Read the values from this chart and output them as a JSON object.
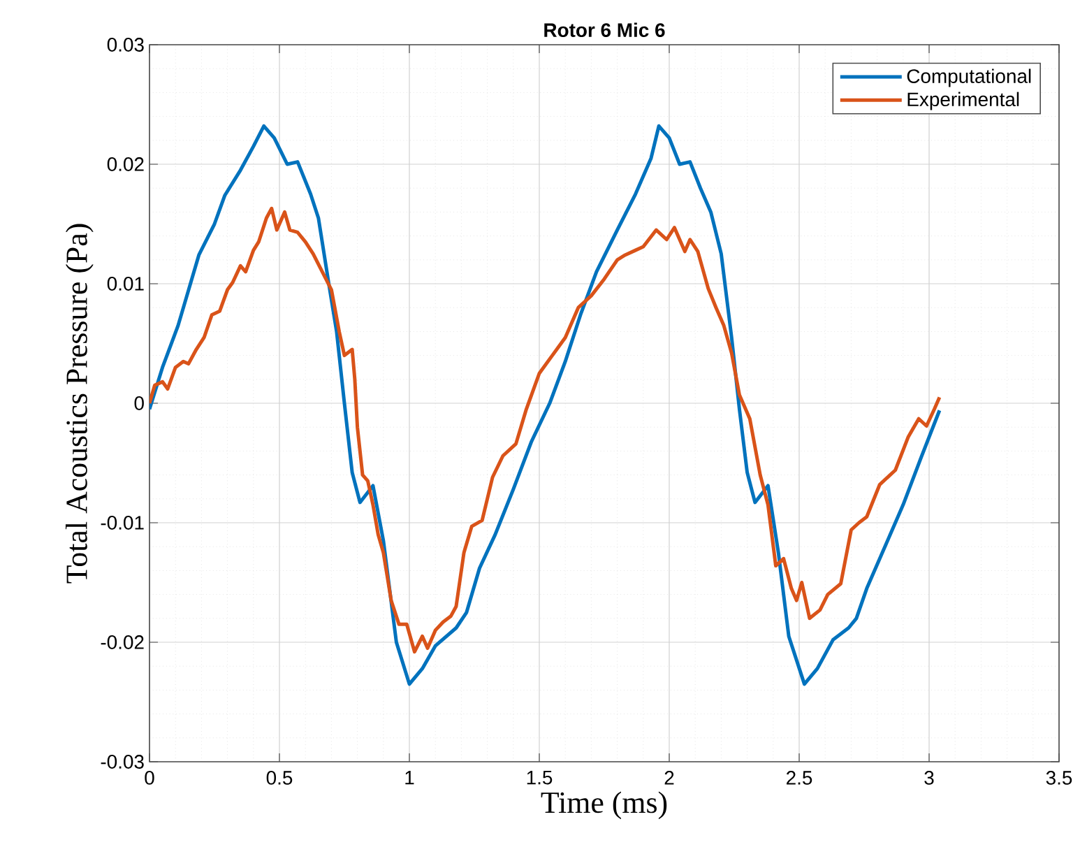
{
  "chart_data": {
    "type": "line",
    "title": "Rotor 6 Mic 6",
    "xlabel": "Time (ms)",
    "ylabel": "Total Acoustics Pressure (Pa)",
    "xlim": [
      0,
      3.5
    ],
    "ylim": [
      -0.03,
      0.03
    ],
    "xticks": [
      0,
      0.5,
      1,
      1.5,
      2,
      2.5,
      3,
      3.5
    ],
    "yticks": [
      -0.03,
      -0.02,
      -0.01,
      0,
      0.01,
      0.02,
      0.03
    ],
    "grid": true,
    "legend": "top right",
    "line_style": "solid",
    "series": [
      {
        "name": "Computational",
        "color": "#0072bd",
        "x": [
          0,
          0.05,
          0.11,
          0.19,
          0.25,
          0.29,
          0.35,
          0.4,
          0.44,
          0.48,
          0.53,
          0.57,
          0.62,
          0.65,
          0.69,
          0.72,
          0.75,
          0.78,
          0.81,
          0.86,
          0.9,
          0.95,
          1.0,
          1.05,
          1.1,
          1.18,
          1.22,
          1.27,
          1.33,
          1.4,
          1.47,
          1.54,
          1.6,
          1.66,
          1.72,
          1.8,
          1.87,
          1.93,
          1.96,
          2.0,
          2.04,
          2.08,
          2.12,
          2.16,
          2.2,
          2.24,
          2.27,
          2.3,
          2.33,
          2.38,
          2.42,
          2.46,
          2.52,
          2.57,
          2.63,
          2.69,
          2.72,
          2.76,
          2.82,
          2.9,
          2.97,
          3.04
        ],
        "values": [
          -0.0005,
          0.003,
          0.0065,
          0.0124,
          0.015,
          0.0174,
          0.0195,
          0.0215,
          0.0232,
          0.0222,
          0.02,
          0.0202,
          0.0175,
          0.0155,
          0.01,
          0.006,
          0.0,
          -0.0058,
          -0.0083,
          -0.0069,
          -0.0115,
          -0.02,
          -0.0235,
          -0.0222,
          -0.0203,
          -0.0188,
          -0.0175,
          -0.0138,
          -0.011,
          -0.0072,
          -0.0032,
          0.0,
          0.0035,
          0.0075,
          0.011,
          0.0145,
          0.0175,
          0.0205,
          0.0232,
          0.0222,
          0.02,
          0.0202,
          0.018,
          0.016,
          0.0125,
          0.0055,
          -0.0005,
          -0.0058,
          -0.0083,
          -0.0069,
          -0.0125,
          -0.0195,
          -0.0235,
          -0.0222,
          -0.0198,
          -0.0188,
          -0.018,
          -0.0155,
          -0.0125,
          -0.0085,
          -0.0045,
          -0.0006
        ]
      },
      {
        "name": "Experimental",
        "color": "#d95319",
        "x": [
          0,
          0.02,
          0.05,
          0.07,
          0.1,
          0.13,
          0.15,
          0.18,
          0.21,
          0.24,
          0.27,
          0.3,
          0.32,
          0.35,
          0.37,
          0.4,
          0.42,
          0.45,
          0.47,
          0.49,
          0.52,
          0.54,
          0.57,
          0.6,
          0.63,
          0.66,
          0.7,
          0.73,
          0.75,
          0.78,
          0.79,
          0.8,
          0.82,
          0.84,
          0.86,
          0.88,
          0.9,
          0.93,
          0.96,
          0.99,
          1.02,
          1.05,
          1.07,
          1.1,
          1.13,
          1.16,
          1.18,
          1.21,
          1.24,
          1.28,
          1.32,
          1.36,
          1.41,
          1.45,
          1.5,
          1.55,
          1.6,
          1.65,
          1.7,
          1.75,
          1.8,
          1.83,
          1.87,
          1.9,
          1.95,
          1.99,
          2.02,
          2.06,
          2.08,
          2.11,
          2.15,
          2.18,
          2.21,
          2.24,
          2.27,
          2.31,
          2.35,
          2.38,
          2.41,
          2.44,
          2.47,
          2.49,
          2.51,
          2.54,
          2.58,
          2.61,
          2.66,
          2.7,
          2.73,
          2.76,
          2.81,
          2.87,
          2.92,
          2.96,
          2.99,
          3.02,
          3.04
        ],
        "values": [
          0.0,
          0.0015,
          0.0018,
          0.0012,
          0.003,
          0.0035,
          0.0033,
          0.0045,
          0.0055,
          0.0074,
          0.0077,
          0.0095,
          0.0101,
          0.0115,
          0.011,
          0.0128,
          0.0135,
          0.0155,
          0.0163,
          0.0145,
          0.016,
          0.0145,
          0.0143,
          0.0135,
          0.0125,
          0.0112,
          0.0095,
          0.006,
          0.004,
          0.0045,
          0.002,
          -0.002,
          -0.006,
          -0.0065,
          -0.0085,
          -0.011,
          -0.0125,
          -0.0165,
          -0.0185,
          -0.0185,
          -0.0208,
          -0.0195,
          -0.0205,
          -0.019,
          -0.0183,
          -0.0178,
          -0.017,
          -0.0125,
          -0.0103,
          -0.0098,
          -0.0062,
          -0.0044,
          -0.0034,
          -0.0005,
          0.0025,
          0.004,
          0.0055,
          0.008,
          0.009,
          0.0104,
          0.012,
          0.0124,
          0.0128,
          0.0131,
          0.0145,
          0.0137,
          0.0147,
          0.0127,
          0.0137,
          0.0127,
          0.0096,
          0.008,
          0.0065,
          0.0042,
          0.0007,
          -0.0013,
          -0.006,
          -0.0085,
          -0.0136,
          -0.013,
          -0.0155,
          -0.0165,
          -0.015,
          -0.018,
          -0.0173,
          -0.016,
          -0.0151,
          -0.0106,
          -0.01,
          -0.0095,
          -0.0068,
          -0.0056,
          -0.0028,
          -0.0013,
          -0.0019,
          -0.0005,
          0.0005
        ]
      }
    ]
  }
}
